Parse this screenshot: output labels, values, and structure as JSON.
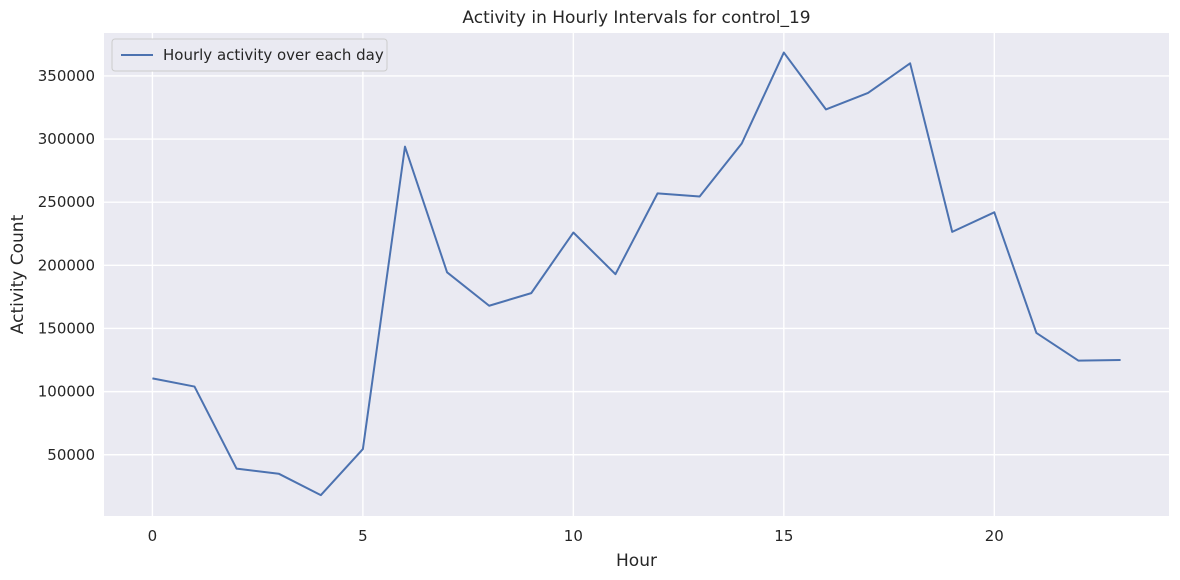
{
  "chart_data": {
    "type": "line",
    "title": "Activity in Hourly Intervals for control_19",
    "xlabel": "Hour",
    "ylabel": "Activity Count",
    "xlim": [
      -1.15,
      24.15
    ],
    "ylim": [
      1500,
      384000
    ],
    "xticks": [
      0,
      5,
      10,
      15,
      20
    ],
    "yticks": [
      50000,
      100000,
      150000,
      200000,
      250000,
      300000,
      350000
    ],
    "grid": true,
    "legend_position": "top-left",
    "series": [
      {
        "name": "Hourly activity over each day",
        "color": "#4c72b0",
        "x": [
          0,
          1,
          2,
          3,
          4,
          5,
          6,
          7,
          8,
          9,
          10,
          11,
          12,
          13,
          14,
          15,
          16,
          17,
          18,
          19,
          20,
          21,
          22,
          23
        ],
        "y": [
          110500,
          104000,
          39000,
          35000,
          18000,
          54500,
          294000,
          194500,
          168000,
          178000,
          226000,
          193000,
          257000,
          254500,
          296500,
          368500,
          323500,
          336500,
          360000,
          226500,
          242000,
          146500,
          124500,
          125000
        ]
      }
    ]
  }
}
